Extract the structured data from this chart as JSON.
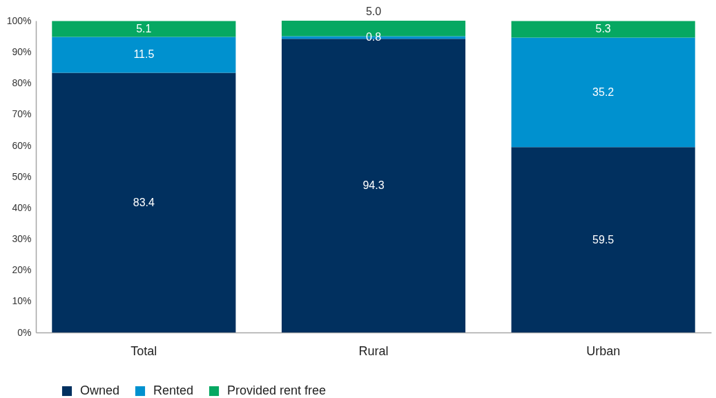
{
  "chart_data": {
    "type": "bar",
    "stacked": true,
    "categories": [
      "Total",
      "Rural",
      "Urban"
    ],
    "series": [
      {
        "name": "Owned",
        "color": "#01305f",
        "values": [
          83.4,
          94.3,
          59.5
        ],
        "value_labels": [
          "83.4",
          "94.3",
          "59.5"
        ]
      },
      {
        "name": "Rented",
        "color": "#0091cf",
        "values": [
          11.5,
          0.8,
          35.2
        ],
        "value_labels": [
          "11.5",
          "0.8",
          "35.2"
        ]
      },
      {
        "name": "Provided rent free",
        "color": "#06a862",
        "values": [
          5.1,
          5.0,
          5.3
        ],
        "value_labels": [
          "5.1",
          "5.0",
          "5.3"
        ]
      }
    ],
    "ylim": [
      0,
      100.1
    ],
    "yticks": [
      {
        "value": 0,
        "label": "0%"
      },
      {
        "value": 10,
        "label": "10%"
      },
      {
        "value": 20,
        "label": "20%"
      },
      {
        "value": 30,
        "label": "30%"
      },
      {
        "value": 40,
        "label": "40%"
      },
      {
        "value": 50,
        "label": "50%"
      },
      {
        "value": 60,
        "label": "60%"
      },
      {
        "value": 70,
        "label": "70%"
      },
      {
        "value": 80,
        "label": "80%"
      },
      {
        "value": 90,
        "label": "90%"
      },
      {
        "value": 100,
        "label": "100%"
      }
    ],
    "legend": "bottom"
  }
}
